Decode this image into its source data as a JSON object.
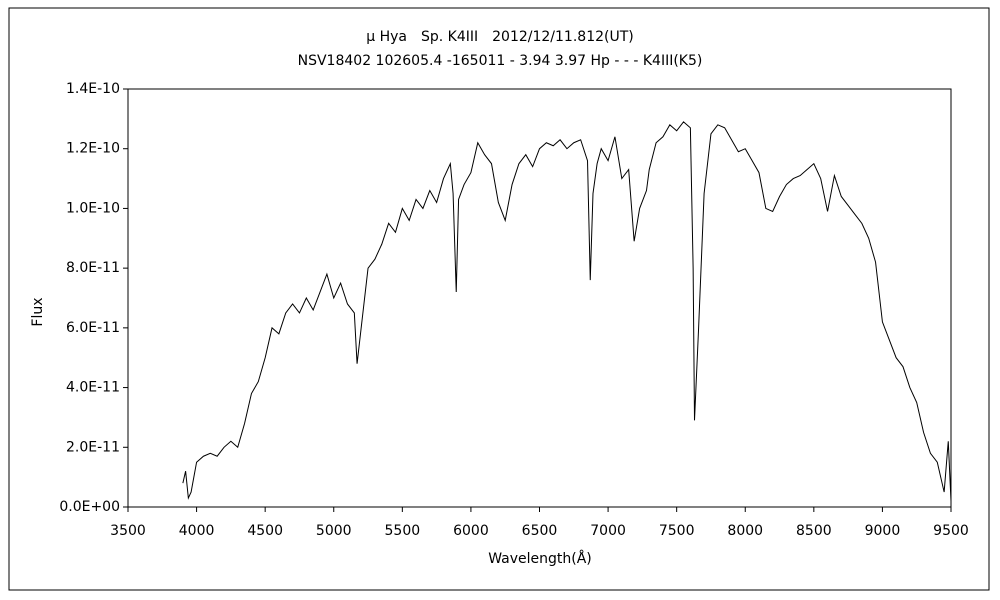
{
  "chart_data": {
    "type": "line",
    "title": "μ Hya　Sp. K4III　2012/12/11.812(UT)",
    "subtitle": "NSV18402 102605.4 -165011 - 3.94 3.97 Hp - - - K4III(K5)",
    "x_label": "Wavelength(Å)",
    "y_label": "Flux",
    "color": "#000000",
    "grid": false,
    "xlim": [
      3500,
      9500
    ],
    "xticks": [
      3500,
      4000,
      4500,
      5000,
      5500,
      6000,
      6500,
      7000,
      7500,
      8000,
      8500,
      9000,
      9500
    ],
    "ylim": [
      0,
      1.4e-10
    ],
    "yticks": [
      {
        "value": 0,
        "label": "0.0E+00"
      },
      {
        "value": 2e-11,
        "label": "2.0E-11"
      },
      {
        "value": 4e-11,
        "label": "4.0E-11"
      },
      {
        "value": 6e-11,
        "label": "6.0E-11"
      },
      {
        "value": 8e-11,
        "label": "8.0E-11"
      },
      {
        "value": 1e-10,
        "label": "1.0E-10"
      },
      {
        "value": 1.2e-10,
        "label": "1.2E-10"
      },
      {
        "value": 1.4e-10,
        "label": "1.4E-10"
      }
    ],
    "x": [
      3900,
      3920,
      3940,
      3960,
      3980,
      4000,
      4050,
      4100,
      4150,
      4200,
      4250,
      4300,
      4350,
      4400,
      4450,
      4500,
      4550,
      4600,
      4650,
      4700,
      4750,
      4800,
      4850,
      4900,
      4950,
      5000,
      5050,
      5100,
      5150,
      5170,
      5200,
      5250,
      5300,
      5350,
      5400,
      5450,
      5500,
      5550,
      5600,
      5650,
      5700,
      5750,
      5800,
      5850,
      5870,
      5893,
      5910,
      5950,
      6000,
      6050,
      6100,
      6150,
      6200,
      6250,
      6300,
      6350,
      6400,
      6450,
      6500,
      6550,
      6600,
      6650,
      6700,
      6750,
      6800,
      6850,
      6870,
      6890,
      6920,
      6950,
      7000,
      7050,
      7100,
      7150,
      7190,
      7230,
      7280,
      7300,
      7350,
      7400,
      7450,
      7500,
      7550,
      7600,
      7620,
      7630,
      7660,
      7700,
      7750,
      7800,
      7850,
      7900,
      7950,
      8000,
      8050,
      8100,
      8150,
      8200,
      8250,
      8300,
      8350,
      8400,
      8450,
      8500,
      8550,
      8600,
      8650,
      8700,
      8750,
      8800,
      8850,
      8900,
      8950,
      9000,
      9050,
      9100,
      9150,
      9200,
      9250,
      9300,
      9350,
      9400,
      9450,
      9480,
      9500
    ],
    "values": [
      8e-12,
      1.2e-11,
      3e-12,
      5e-12,
      1e-11,
      1.5e-11,
      1.7e-11,
      1.8e-11,
      1.7e-11,
      2e-11,
      2.2e-11,
      2e-11,
      2.8e-11,
      3.8e-11,
      4.2e-11,
      5e-11,
      6e-11,
      5.8e-11,
      6.5e-11,
      6.8e-11,
      6.5e-11,
      7e-11,
      6.6e-11,
      7.2e-11,
      7.8e-11,
      7e-11,
      7.5e-11,
      6.8e-11,
      6.5e-11,
      4.8e-11,
      6e-11,
      8e-11,
      8.3e-11,
      8.8e-11,
      9.5e-11,
      9.2e-11,
      1e-10,
      9.6e-11,
      1.03e-10,
      1e-10,
      1.06e-10,
      1.02e-10,
      1.1e-10,
      1.15e-10,
      1.05e-10,
      7.2e-11,
      1.03e-10,
      1.08e-10,
      1.12e-10,
      1.22e-10,
      1.18e-10,
      1.15e-10,
      1.02e-10,
      9.6e-11,
      1.08e-10,
      1.15e-10,
      1.18e-10,
      1.14e-10,
      1.2e-10,
      1.22e-10,
      1.21e-10,
      1.23e-10,
      1.2e-10,
      1.22e-10,
      1.23e-10,
      1.16e-10,
      7.6e-11,
      1.05e-10,
      1.15e-10,
      1.2e-10,
      1.16e-10,
      1.24e-10,
      1.1e-10,
      1.13e-10,
      8.9e-11,
      1e-10,
      1.06e-10,
      1.13e-10,
      1.22e-10,
      1.24e-10,
      1.28e-10,
      1.26e-10,
      1.29e-10,
      1.27e-10,
      8e-11,
      2.9e-11,
      6e-11,
      1.05e-10,
      1.25e-10,
      1.28e-10,
      1.27e-10,
      1.23e-10,
      1.19e-10,
      1.2e-10,
      1.16e-10,
      1.12e-10,
      1e-10,
      9.9e-11,
      1.04e-10,
      1.08e-10,
      1.1e-10,
      1.11e-10,
      1.13e-10,
      1.15e-10,
      1.1e-10,
      9.9e-11,
      1.11e-10,
      1.04e-10,
      1.01e-10,
      9.8e-11,
      9.5e-11,
      9e-11,
      8.2e-11,
      6.2e-11,
      5.6e-11,
      5e-11,
      4.7e-11,
      4e-11,
      3.5e-11,
      2.5e-11,
      1.8e-11,
      1.5e-11,
      5e-12,
      2.2e-11,
      2e-12
    ]
  }
}
